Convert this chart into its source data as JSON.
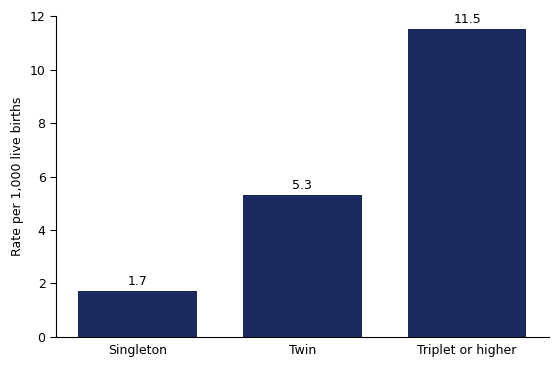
{
  "categories": [
    "Singleton",
    "Twin",
    "Triplet or higher"
  ],
  "values": [
    1.7,
    5.3,
    11.5
  ],
  "bar_color": "#1b2a5e",
  "ylabel": "Rate per 1,000 live births",
  "ylim": [
    0,
    12
  ],
  "yticks": [
    0,
    2,
    4,
    6,
    8,
    10,
    12
  ],
  "bar_width": 0.72,
  "label_fontsize": 9,
  "tick_fontsize": 9,
  "ylabel_fontsize": 9,
  "background_color": "#ffffff"
}
